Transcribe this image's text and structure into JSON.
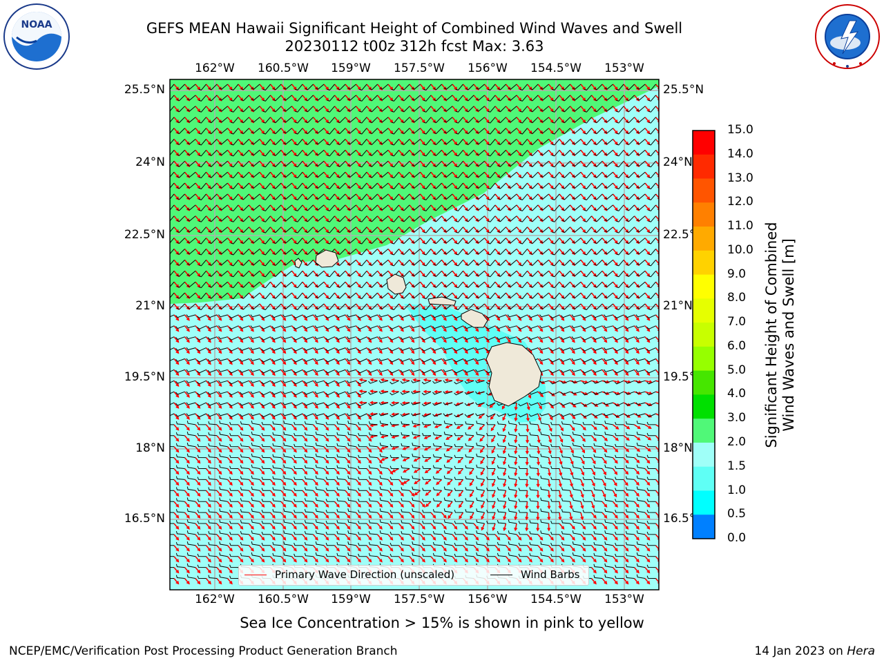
{
  "title": {
    "line1": "GEFS MEAN Hawaii Significant Height of Combined Wind Waves and Swell",
    "line2": "20230112 t00z 312h fcst   Max: 3.63"
  },
  "logos": {
    "left": {
      "text": "NOAA",
      "icon": "noaa-logo-icon"
    },
    "right": {
      "text": "NATIONAL WEATHER SERVICE",
      "icon": "nws-logo-icon"
    }
  },
  "axes": {
    "lon_ticks": [
      "162°W",
      "160.5°W",
      "159°W",
      "157.5°W",
      "156°W",
      "154.5°W",
      "153°W"
    ],
    "lat_ticks": [
      "25.5°N",
      "24°N",
      "22.5°N",
      "21°N",
      "19.5°N",
      "18°N",
      "16.5°N"
    ]
  },
  "colorbar": {
    "label_line1": "Significant Height of Combined",
    "label_line2": "Wind Waves and Swell [m]",
    "ticks": [
      "15.0",
      "14.0",
      "13.0",
      "12.0",
      "11.0",
      "10.0",
      "9.0",
      "8.0",
      "7.0",
      "6.0",
      "5.0",
      "4.0",
      "3.0",
      "2.0",
      "1.5",
      "1.0",
      "0.5",
      "0.0"
    ],
    "colors": [
      "#ff0000",
      "#ff2a00",
      "#ff5500",
      "#ff8000",
      "#ffaa00",
      "#ffd200",
      "#ffff00",
      "#e6ff00",
      "#c8ff00",
      "#96ff00",
      "#46e600",
      "#00e000",
      "#50f878",
      "#9ffff8",
      "#5ffff5",
      "#00ffff",
      "#0080ff",
      "#0000ff"
    ]
  },
  "map_colors": {
    "sea_low": "#9ffff8",
    "sea_high": "#50f878",
    "sea_mid": "#5ffff5",
    "land": "#efe9d9",
    "wave_arrow": "#ff0000",
    "wind_barb": "#000000"
  },
  "legend": {
    "wave_label": "Primary Wave Direction (unscaled)",
    "wind_label": "Wind Barbs"
  },
  "ice_note": "Sea Ice Concentration > 15% is shown in pink to yellow",
  "footer": {
    "left": "NCEP/EMC/Verification Post Processing Product Generation Branch",
    "right_prefix": "14 Jan 2023 on ",
    "right_host": "Hera"
  }
}
